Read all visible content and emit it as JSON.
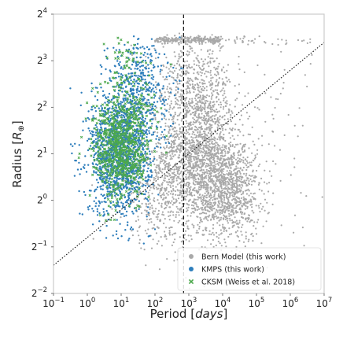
{
  "chart_data": {
    "type": "scatter",
    "title": "",
    "xlabel": {
      "prefix": "Period [",
      "var": "days",
      "suffix": "]"
    },
    "ylabel": {
      "prefix": "Radius [",
      "var": "R",
      "sub": "⊕",
      "suffix": "]"
    },
    "x_scale": "log10",
    "y_scale": "log2",
    "xlim": [
      0.1,
      10000000
    ],
    "ylim": [
      0.25,
      16
    ],
    "grid": false,
    "x_ticks": [
      {
        "base": "10",
        "exp": "−1",
        "value": 0.1
      },
      {
        "base": "10",
        "exp": "0",
        "value": 1
      },
      {
        "base": "10",
        "exp": "1",
        "value": 10
      },
      {
        "base": "10",
        "exp": "2",
        "value": 100
      },
      {
        "base": "10",
        "exp": "3",
        "value": 1000
      },
      {
        "base": "10",
        "exp": "4",
        "value": 10000
      },
      {
        "base": "10",
        "exp": "5",
        "value": 100000
      },
      {
        "base": "10",
        "exp": "6",
        "value": 1000000
      },
      {
        "base": "10",
        "exp": "7",
        "value": 10000000
      }
    ],
    "y_ticks": [
      {
        "base": "2",
        "exp": "−2",
        "value": 0.25
      },
      {
        "base": "2",
        "exp": "−1",
        "value": 0.5
      },
      {
        "base": "2",
        "exp": "0",
        "value": 1
      },
      {
        "base": "2",
        "exp": "1",
        "value": 2
      },
      {
        "base": "2",
        "exp": "2",
        "value": 4
      },
      {
        "base": "2",
        "exp": "3",
        "value": 8
      },
      {
        "base": "2",
        "exp": "4",
        "value": 16
      }
    ],
    "legend_position": "lower-right",
    "series": [
      {
        "name": "Bern Model (this work)",
        "color": "#a9a9a9",
        "marker": "circle",
        "clusters": [
          {
            "logx_mean": 3.3,
            "logx_sd": 0.55,
            "log2y_mean": 1.0,
            "log2y_sd": 0.75,
            "n": 1500
          },
          {
            "logx_mean": 4.2,
            "logx_sd": 0.45,
            "log2y_mean": 0.2,
            "log2y_sd": 0.55,
            "n": 900
          },
          {
            "logx_mean": 2.3,
            "logx_sd": 0.7,
            "log2y_mean": 0.2,
            "log2y_sd": 0.6,
            "n": 500
          },
          {
            "logx_mean": 3.1,
            "logx_sd": 0.6,
            "log2y_mean": 2.5,
            "log2y_sd": 0.5,
            "n": 450
          },
          {
            "logx_mean": 5.3,
            "logx_sd": 0.8,
            "log2y_mean": 1.5,
            "log2y_sd": 1.2,
            "n": 90
          }
        ],
        "band_y": 3.45,
        "band_x_range": [
          2.0,
          3.9
        ],
        "band_n": 260,
        "band_sparse_x_range": [
          3.9,
          6.8
        ],
        "band_sparse_n": 40
      },
      {
        "name": "KMPS (this work)",
        "color": "#2e7ebc",
        "marker": "circle",
        "clusters": [
          {
            "logx_mean": 0.95,
            "logx_sd": 0.45,
            "log2y_mean": 1.0,
            "log2y_sd": 0.65,
            "n": 1400
          },
          {
            "logx_mean": 1.5,
            "logx_sd": 0.45,
            "log2y_mean": 2.4,
            "log2y_sd": 0.6,
            "n": 450
          }
        ]
      },
      {
        "name": "CKSM (Weiss et al. 2018)",
        "color": "#4ca84c",
        "marker": "x",
        "clusters": [
          {
            "logx_mean": 1.0,
            "logx_sd": 0.42,
            "log2y_mean": 1.1,
            "log2y_sd": 0.55,
            "n": 700
          },
          {
            "logx_mean": 1.2,
            "logx_sd": 0.4,
            "log2y_mean": 2.5,
            "log2y_sd": 0.6,
            "n": 120
          }
        ]
      }
    ],
    "reference_lines": [
      {
        "kind": "vertical",
        "style": "dashed",
        "x": 700
      },
      {
        "kind": "diagonal",
        "style": "dotted",
        "from": [
          0.1,
          0.38
        ],
        "to": [
          10000000,
          10.5
        ]
      }
    ]
  }
}
